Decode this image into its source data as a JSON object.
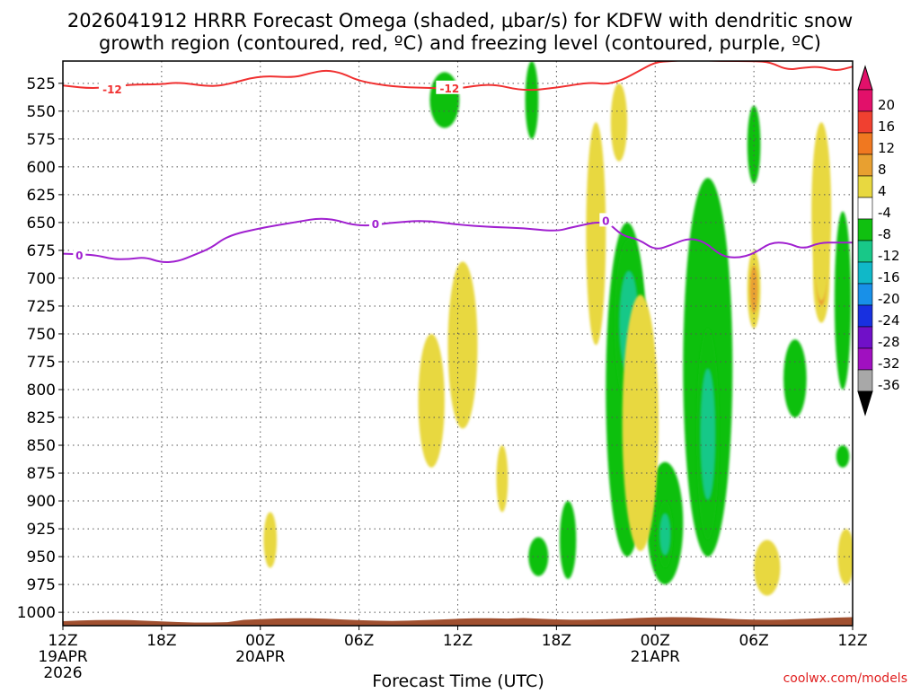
{
  "chart_data": {
    "type": "heatmap",
    "title_line1": "2026041912 HRRR Forecast Omega (shaded, μbar/s) for KDFW with dendritic snow",
    "title_line2": "growth region (contoured, red, ºC) and freezing level (contoured, purple, ºC)",
    "xlabel": "Forecast Time (UTC)",
    "x_range_hours": [
      0,
      48
    ],
    "x_ticks": [
      {
        "h": 0,
        "label": "12Z",
        "date": "19APR",
        "year": "2026"
      },
      {
        "h": 6,
        "label": "18Z"
      },
      {
        "h": 12,
        "label": "00Z",
        "date": "20APR"
      },
      {
        "h": 18,
        "label": "06Z"
      },
      {
        "h": 24,
        "label": "12Z"
      },
      {
        "h": 30,
        "label": "18Z"
      },
      {
        "h": 36,
        "label": "00Z",
        "date": "21APR"
      },
      {
        "h": 42,
        "label": "06Z"
      },
      {
        "h": 48,
        "label": "12Z"
      }
    ],
    "y_range_hpa": [
      1012,
      505
    ],
    "y_ticks": [
      "525",
      "550",
      "575",
      "600",
      "625",
      "650",
      "675",
      "700",
      "725",
      "750",
      "775",
      "800",
      "825",
      "850",
      "875",
      "900",
      "925",
      "950",
      "975",
      "1000"
    ],
    "colorbar": {
      "labels": [
        "20",
        "16",
        "12",
        "8",
        "4",
        "-4",
        "-8",
        "-12",
        "-16",
        "-20",
        "-24",
        "-28",
        "-32",
        "-36"
      ],
      "colors": [
        "#e2106a",
        "#f04030",
        "#f07820",
        "#e8a030",
        "#e8d840",
        "#ffffff",
        "#10c010",
        "#18c888",
        "#10b8c8",
        "#1890e8",
        "#1830e0",
        "#7010c8",
        "#a010c0",
        "#a8a8a8"
      ]
    },
    "omega_features": [
      {
        "name": "upward-core-a",
        "h": 34.3,
        "p": 710,
        "dh": 0.6,
        "dp": 55,
        "level": -20
      },
      {
        "name": "upward-band-a",
        "h": 34.3,
        "p": 800,
        "dh": 1.3,
        "dp": 300,
        "level": -8
      },
      {
        "name": "upward-band-a2",
        "h": 34.4,
        "p": 740,
        "dh": 0.9,
        "dp": 150,
        "level": -12
      },
      {
        "name": "upward-band-b",
        "h": 39.2,
        "p": 780,
        "dh": 1.5,
        "dp": 340,
        "level": -8
      },
      {
        "name": "upward-core-b",
        "h": 39.2,
        "p": 840,
        "dh": 0.35,
        "dp": 130,
        "level": -20
      },
      {
        "name": "upward-core-b2",
        "h": 39.2,
        "p": 840,
        "dh": 0.7,
        "dp": 190,
        "level": -12
      },
      {
        "name": "upward-low",
        "h": 36.6,
        "p": 920,
        "dh": 1.1,
        "dp": 110,
        "level": -8
      },
      {
        "name": "upward-low-core",
        "h": 36.6,
        "p": 930,
        "dh": 0.5,
        "dp": 60,
        "level": -12
      },
      {
        "name": "downward-core",
        "h": 35.2,
        "p": 855,
        "dh": 0.7,
        "dp": 115,
        "level": 20
      },
      {
        "name": "downward-core2",
        "h": 35.2,
        "p": 840,
        "dh": 0.9,
        "dp": 175,
        "level": 12
      },
      {
        "name": "downward-band",
        "h": 35.1,
        "p": 830,
        "dh": 1.1,
        "dp": 230,
        "level": 4
      },
      {
        "name": "downward-upper",
        "h": 33.8,
        "p": 560,
        "dh": 0.5,
        "dp": 70,
        "level": 4
      },
      {
        "name": "downward-upper2",
        "h": 32.4,
        "p": 660,
        "dh": 0.6,
        "dp": 200,
        "level": 4
      },
      {
        "name": "sink-mid",
        "h": 24.3,
        "p": 760,
        "dh": 0.9,
        "dp": 150,
        "level": 4
      },
      {
        "name": "sink-low",
        "h": 22.4,
        "p": 810,
        "dh": 0.8,
        "dp": 120,
        "level": 4
      },
      {
        "name": "sink-low2",
        "h": 26.7,
        "p": 880,
        "dh": 0.35,
        "dp": 60,
        "level": 4
      },
      {
        "name": "sink-sfc",
        "h": 12.6,
        "p": 935,
        "dh": 0.4,
        "dp": 50,
        "level": 4
      },
      {
        "name": "rise-upper",
        "h": 23.2,
        "p": 540,
        "dh": 0.9,
        "dp": 50,
        "level": -8
      },
      {
        "name": "rise-upper2",
        "h": 28.5,
        "p": 540,
        "dh": 0.4,
        "dp": 70,
        "level": -8
      },
      {
        "name": "rise-low",
        "h": 30.7,
        "p": 935,
        "dh": 0.5,
        "dp": 70,
        "level": -8
      },
      {
        "name": "rise-low2",
        "h": 28.9,
        "p": 950,
        "dh": 0.6,
        "dp": 35,
        "level": -8
      },
      {
        "name": "rise-east",
        "h": 42.0,
        "p": 580,
        "dh": 0.4,
        "dp": 70,
        "level": -8
      },
      {
        "name": "rise-east2",
        "h": 44.5,
        "p": 790,
        "dh": 0.7,
        "dp": 70,
        "level": -8
      },
      {
        "name": "sink-east",
        "h": 42.0,
        "p": 710,
        "dh": 0.4,
        "dp": 70,
        "level": 8
      },
      {
        "name": "sink-east2",
        "h": 42.8,
        "p": 960,
        "dh": 0.8,
        "dp": 50,
        "level": 4
      },
      {
        "name": "sink-east3",
        "h": 46.1,
        "p": 700,
        "dh": 0.5,
        "dp": 80,
        "level": 8
      },
      {
        "name": "sink-east4",
        "h": 46.1,
        "p": 640,
        "dh": 0.6,
        "dp": 160,
        "level": 4
      },
      {
        "name": "rise-edge",
        "h": 47.4,
        "p": 720,
        "dh": 0.5,
        "dp": 160,
        "level": -8
      },
      {
        "name": "sink-edge",
        "h": 47.6,
        "p": 950,
        "dh": 0.5,
        "dp": 50,
        "level": 4
      },
      {
        "name": "rise-edge2",
        "h": 47.4,
        "p": 860,
        "dh": 0.4,
        "dp": 20,
        "level": -8
      }
    ],
    "dgz_label": "-12",
    "dgz_contour": [
      [
        0,
        527
      ],
      [
        2,
        530
      ],
      [
        4,
        526
      ],
      [
        6,
        526
      ],
      [
        7,
        524
      ],
      [
        9,
        528
      ],
      [
        10,
        526
      ],
      [
        12,
        518
      ],
      [
        14,
        520
      ],
      [
        15,
        516
      ],
      [
        16,
        513
      ],
      [
        17,
        516
      ],
      [
        18,
        523
      ],
      [
        20,
        528
      ],
      [
        22,
        529
      ],
      [
        24,
        530
      ],
      [
        26,
        525
      ],
      [
        28,
        532
      ],
      [
        30,
        529
      ],
      [
        32,
        524
      ],
      [
        33,
        526
      ],
      [
        34,
        522
      ],
      [
        35,
        514
      ],
      [
        36,
        506
      ],
      [
        37,
        505
      ],
      [
        38,
        504
      ],
      [
        40,
        505
      ],
      [
        42,
        505
      ],
      [
        43,
        506
      ],
      [
        44,
        513
      ],
      [
        45,
        511
      ],
      [
        46,
        510
      ],
      [
        47,
        514
      ],
      [
        48,
        510
      ]
    ],
    "freezing_label": "0",
    "freezing_contour": [
      [
        0,
        678
      ],
      [
        2,
        679
      ],
      [
        3,
        683
      ],
      [
        4,
        683
      ],
      [
        5,
        681
      ],
      [
        6,
        686
      ],
      [
        7,
        685
      ],
      [
        8,
        679
      ],
      [
        9,
        673
      ],
      [
        10,
        662
      ],
      [
        12,
        655
      ],
      [
        14,
        650
      ],
      [
        16,
        645
      ],
      [
        18,
        654
      ],
      [
        20,
        650
      ],
      [
        22,
        648
      ],
      [
        24,
        652
      ],
      [
        26,
        654
      ],
      [
        28,
        655
      ],
      [
        30,
        658
      ],
      [
        31,
        654
      ],
      [
        33,
        648
      ],
      [
        34,
        662
      ],
      [
        35,
        665
      ],
      [
        36,
        675
      ],
      [
        37,
        670
      ],
      [
        38,
        664
      ],
      [
        39,
        667
      ],
      [
        40,
        680
      ],
      [
        41,
        682
      ],
      [
        42,
        678
      ],
      [
        43,
        668
      ],
      [
        44,
        668
      ],
      [
        45,
        674
      ],
      [
        46,
        668
      ],
      [
        47,
        668
      ],
      [
        48,
        668
      ]
    ],
    "terrain_color": "#a05030",
    "credit": "coolwx.com/models"
  }
}
